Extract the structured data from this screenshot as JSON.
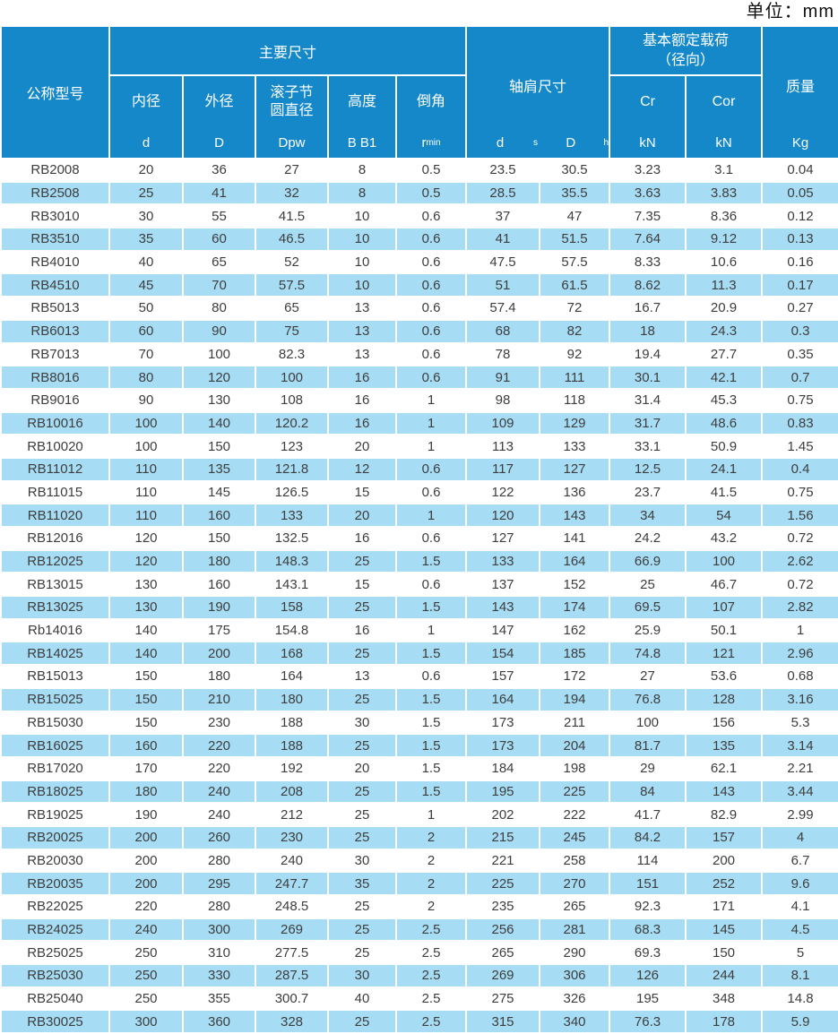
{
  "unit_label": "单位：mm",
  "colors": {
    "header_blue": "#1588c9",
    "stripe_blue": "#a7ddf4",
    "body_text": "#3d3d3d"
  },
  "header": {
    "model": "公称型号",
    "main_dims": "主要尺寸",
    "inner": {
      "label": "内径",
      "sym": "d"
    },
    "outer": {
      "label": "外径",
      "sym": "D"
    },
    "pitch": {
      "label_line1": "滚子节",
      "label_line2": "圆直径",
      "sym": "Dpw"
    },
    "height": {
      "label": "高度",
      "sym": "B B1"
    },
    "chamfer": {
      "label": "倒角",
      "sym_base": "r",
      "sym_sub": "min"
    },
    "shoulder": {
      "label": "轴肩尺寸",
      "sym1_base": "d",
      "sym1_sub": "s",
      "sym2_base": "D",
      "sym2_sub": "h"
    },
    "load": {
      "line1": "基本额定载荷",
      "line2": "（径向）",
      "cr": "Cr",
      "cr_unit": "kN",
      "cor": "Cor",
      "cor_unit": "kN"
    },
    "mass": {
      "label": "质量",
      "sym": "Kg"
    }
  },
  "rows": [
    [
      "RB2008",
      "20",
      "36",
      "27",
      "8",
      "0.5",
      "23.5",
      "30.5",
      "3.23",
      "3.1",
      "0.04"
    ],
    [
      "RB2508",
      "25",
      "41",
      "32",
      "8",
      "0.5",
      "28.5",
      "35.5",
      "3.63",
      "3.83",
      "0.05"
    ],
    [
      "RB3010",
      "30",
      "55",
      "41.5",
      "10",
      "0.6",
      "37",
      "47",
      "7.35",
      "8.36",
      "0.12"
    ],
    [
      "RB3510",
      "35",
      "60",
      "46.5",
      "10",
      "0.6",
      "41",
      "51.5",
      "7.64",
      "9.12",
      "0.13"
    ],
    [
      "RB4010",
      "40",
      "65",
      "52",
      "10",
      "0.6",
      "47.5",
      "57.5",
      "8.33",
      "10.6",
      "0.16"
    ],
    [
      "RB4510",
      "45",
      "70",
      "57.5",
      "10",
      "0.6",
      "51",
      "61.5",
      "8.62",
      "11.3",
      "0.17"
    ],
    [
      "RB5013",
      "50",
      "80",
      "65",
      "13",
      "0.6",
      "57.4",
      "72",
      "16.7",
      "20.9",
      "0.27"
    ],
    [
      "RB6013",
      "60",
      "90",
      "75",
      "13",
      "0.6",
      "68",
      "82",
      "18",
      "24.3",
      "0.3"
    ],
    [
      "RB7013",
      "70",
      "100",
      "82.3",
      "13",
      "0.6",
      "78",
      "92",
      "19.4",
      "27.7",
      "0.35"
    ],
    [
      "RB8016",
      "80",
      "120",
      "100",
      "16",
      "0.6",
      "91",
      "111",
      "30.1",
      "42.1",
      "0.7"
    ],
    [
      "RB9016",
      "90",
      "130",
      "108",
      "16",
      "1",
      "98",
      "118",
      "31.4",
      "45.3",
      "0.75"
    ],
    [
      "RB10016",
      "100",
      "140",
      "120.2",
      "16",
      "1",
      "109",
      "129",
      "31.7",
      "48.6",
      "0.83"
    ],
    [
      "RB10020",
      "100",
      "150",
      "123",
      "20",
      "1",
      "113",
      "133",
      "33.1",
      "50.9",
      "1.45"
    ],
    [
      "RB11012",
      "110",
      "135",
      "121.8",
      "12",
      "0.6",
      "117",
      "127",
      "12.5",
      "24.1",
      "0.4"
    ],
    [
      "RB11015",
      "110",
      "145",
      "126.5",
      "15",
      "0.6",
      "122",
      "136",
      "23.7",
      "41.5",
      "0.75"
    ],
    [
      "RB11020",
      "110",
      "160",
      "133",
      "20",
      "1",
      "120",
      "143",
      "34",
      "54",
      "1.56"
    ],
    [
      "RB12016",
      "120",
      "150",
      "132.5",
      "16",
      "0.6",
      "127",
      "141",
      "24.2",
      "43.2",
      "0.72"
    ],
    [
      "RB12025",
      "120",
      "180",
      "148.3",
      "25",
      "1.5",
      "133",
      "164",
      "66.9",
      "100",
      "2.62"
    ],
    [
      "RB13015",
      "130",
      "160",
      "143.1",
      "15",
      "0.6",
      "137",
      "152",
      "25",
      "46.7",
      "0.72"
    ],
    [
      "RB13025",
      "130",
      "190",
      "158",
      "25",
      "1.5",
      "143",
      "174",
      "69.5",
      "107",
      "2.82"
    ],
    [
      "Rb14016",
      "140",
      "175",
      "154.8",
      "16",
      "1",
      "147",
      "162",
      "25.9",
      "50.1",
      "1"
    ],
    [
      "RB14025",
      "140",
      "200",
      "168",
      "25",
      "1.5",
      "154",
      "185",
      "74.8",
      "121",
      "2.96"
    ],
    [
      "RB15013",
      "150",
      "180",
      "164",
      "13",
      "0.6",
      "157",
      "172",
      "27",
      "53.6",
      "0.68"
    ],
    [
      "RB15025",
      "150",
      "210",
      "180",
      "25",
      "1.5",
      "164",
      "194",
      "76.8",
      "128",
      "3.16"
    ],
    [
      "RB15030",
      "150",
      "230",
      "188",
      "30",
      "1.5",
      "173",
      "211",
      "100",
      "156",
      "5.3"
    ],
    [
      "RB16025",
      "160",
      "220",
      "188",
      "25",
      "1.5",
      "173",
      "204",
      "81.7",
      "135",
      "3.14"
    ],
    [
      "RB17020",
      "170",
      "220",
      "192",
      "20",
      "1.5",
      "184",
      "198",
      "29",
      "62.1",
      "2.21"
    ],
    [
      "RB18025",
      "180",
      "240",
      "208",
      "25",
      "1.5",
      "195",
      "225",
      "84",
      "143",
      "3.44"
    ],
    [
      "RB19025",
      "190",
      "240",
      "212",
      "25",
      "1",
      "202",
      "222",
      "41.7",
      "82.9",
      "2.99"
    ],
    [
      "RB20025",
      "200",
      "260",
      "230",
      "25",
      "2",
      "215",
      "245",
      "84.2",
      "157",
      "4"
    ],
    [
      "RB20030",
      "200",
      "280",
      "240",
      "30",
      "2",
      "221",
      "258",
      "114",
      "200",
      "6.7"
    ],
    [
      "RB20035",
      "200",
      "295",
      "247.7",
      "35",
      "2",
      "225",
      "270",
      "151",
      "252",
      "9.6"
    ],
    [
      "RB22025",
      "220",
      "280",
      "248.5",
      "25",
      "2",
      "235",
      "265",
      "92.3",
      "171",
      "4.1"
    ],
    [
      "RB24025",
      "240",
      "300",
      "269",
      "25",
      "2.5",
      "256",
      "281",
      "68.3",
      "145",
      "4.5"
    ],
    [
      "RB25025",
      "250",
      "310",
      "277.5",
      "25",
      "2.5",
      "265",
      "290",
      "69.3",
      "150",
      "5"
    ],
    [
      "RB25030",
      "250",
      "330",
      "287.5",
      "30",
      "2.5",
      "269",
      "306",
      "126",
      "244",
      "8.1"
    ],
    [
      "RB25040",
      "250",
      "355",
      "300.7",
      "40",
      "2.5",
      "275",
      "326",
      "195",
      "348",
      "14.8"
    ],
    [
      "RB30025",
      "300",
      "360",
      "328",
      "25",
      "2.5",
      "315",
      "340",
      "76.3",
      "178",
      "5.9"
    ]
  ]
}
